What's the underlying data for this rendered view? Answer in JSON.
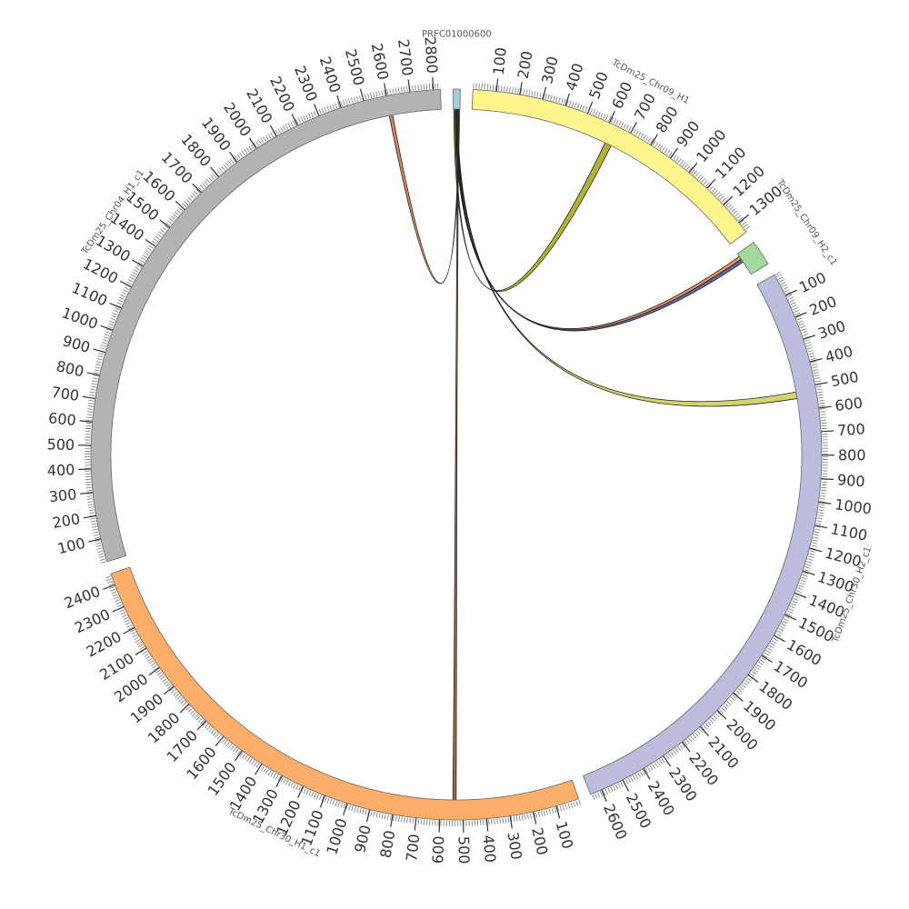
{
  "chart_data": {
    "type": "chord",
    "segments": [
      {
        "name": "PRFC01000600",
        "color": "#a6cee3",
        "length": 30,
        "ticks": []
      },
      {
        "name": "TcDm25_Chr09_H1",
        "color": "#fff68f",
        "length": 1350,
        "ticks": [
          100,
          200,
          300,
          400,
          500,
          600,
          700,
          800,
          900,
          1000,
          1100,
          1200,
          1300
        ]
      },
      {
        "name": "TcDm25_Chr09_H2_c1",
        "color": "#a1d99b",
        "length": 110,
        "ticks": []
      },
      {
        "name": "TcDm25_Chr30_H2_c1",
        "color": "#bcbddc",
        "length": 2650,
        "ticks": [
          100,
          200,
          300,
          400,
          500,
          600,
          700,
          800,
          900,
          1000,
          1100,
          1200,
          1300,
          1400,
          1500,
          1600,
          1700,
          1800,
          1900,
          2000,
          2100,
          2200,
          2300,
          2400,
          2500,
          2600
        ]
      },
      {
        "name": "TcDm25_Chr30_H1_c1",
        "color": "#fdae6b",
        "length": 2450,
        "ticks": [
          100,
          200,
          300,
          400,
          500,
          600,
          700,
          800,
          900,
          1000,
          1100,
          1200,
          1300,
          1400,
          1500,
          1600,
          1700,
          1800,
          1900,
          2000,
          2100,
          2200,
          2300,
          2400
        ]
      },
      {
        "name": "TcDm25_Chr04_H1_c1",
        "color": "#b3b3b3",
        "length": 2830,
        "ticks": [
          100,
          200,
          300,
          400,
          500,
          600,
          700,
          800,
          900,
          1000,
          1100,
          1200,
          1300,
          1400,
          1500,
          1600,
          1700,
          1800,
          1900,
          2000,
          2100,
          2200,
          2300,
          2400,
          2500,
          2600,
          2700,
          2800
        ]
      }
    ],
    "links": [
      {
        "source": "PRFC01000600",
        "source_start": 2,
        "source_end": 8,
        "target": "TcDm25_Chr09_H1",
        "target_start": 620,
        "target_end": 650,
        "color": "#a0a000"
      },
      {
        "source": "PRFC01000600",
        "source_start": 8,
        "source_end": 12,
        "target": "TcDm25_Chr09_H2_c1",
        "target_start": 15,
        "target_end": 30,
        "color": "#e07b39"
      },
      {
        "source": "PRFC01000600",
        "source_start": 12,
        "source_end": 16,
        "target": "TcDm25_Chr09_H2_c1",
        "target_start": 30,
        "target_end": 45,
        "color": "#404090"
      },
      {
        "source": "PRFC01000600",
        "source_start": 16,
        "source_end": 20,
        "target": "TcDm25_Chr30_H2_c1",
        "target_start": 515,
        "target_end": 545,
        "color": "#c8c850"
      },
      {
        "source": "PRFC01000600",
        "source_start": 20,
        "source_end": 24,
        "target": "TcDm25_Chr30_H1_c1",
        "target_start": 530,
        "target_end": 545,
        "color": "#8b4513"
      },
      {
        "source": "PRFC01000600",
        "source_start": 24,
        "source_end": 28,
        "target": "TcDm25_Chr04_H1_c1",
        "target_start": 2595,
        "target_end": 2610,
        "color": "#cc6633"
      }
    ]
  }
}
